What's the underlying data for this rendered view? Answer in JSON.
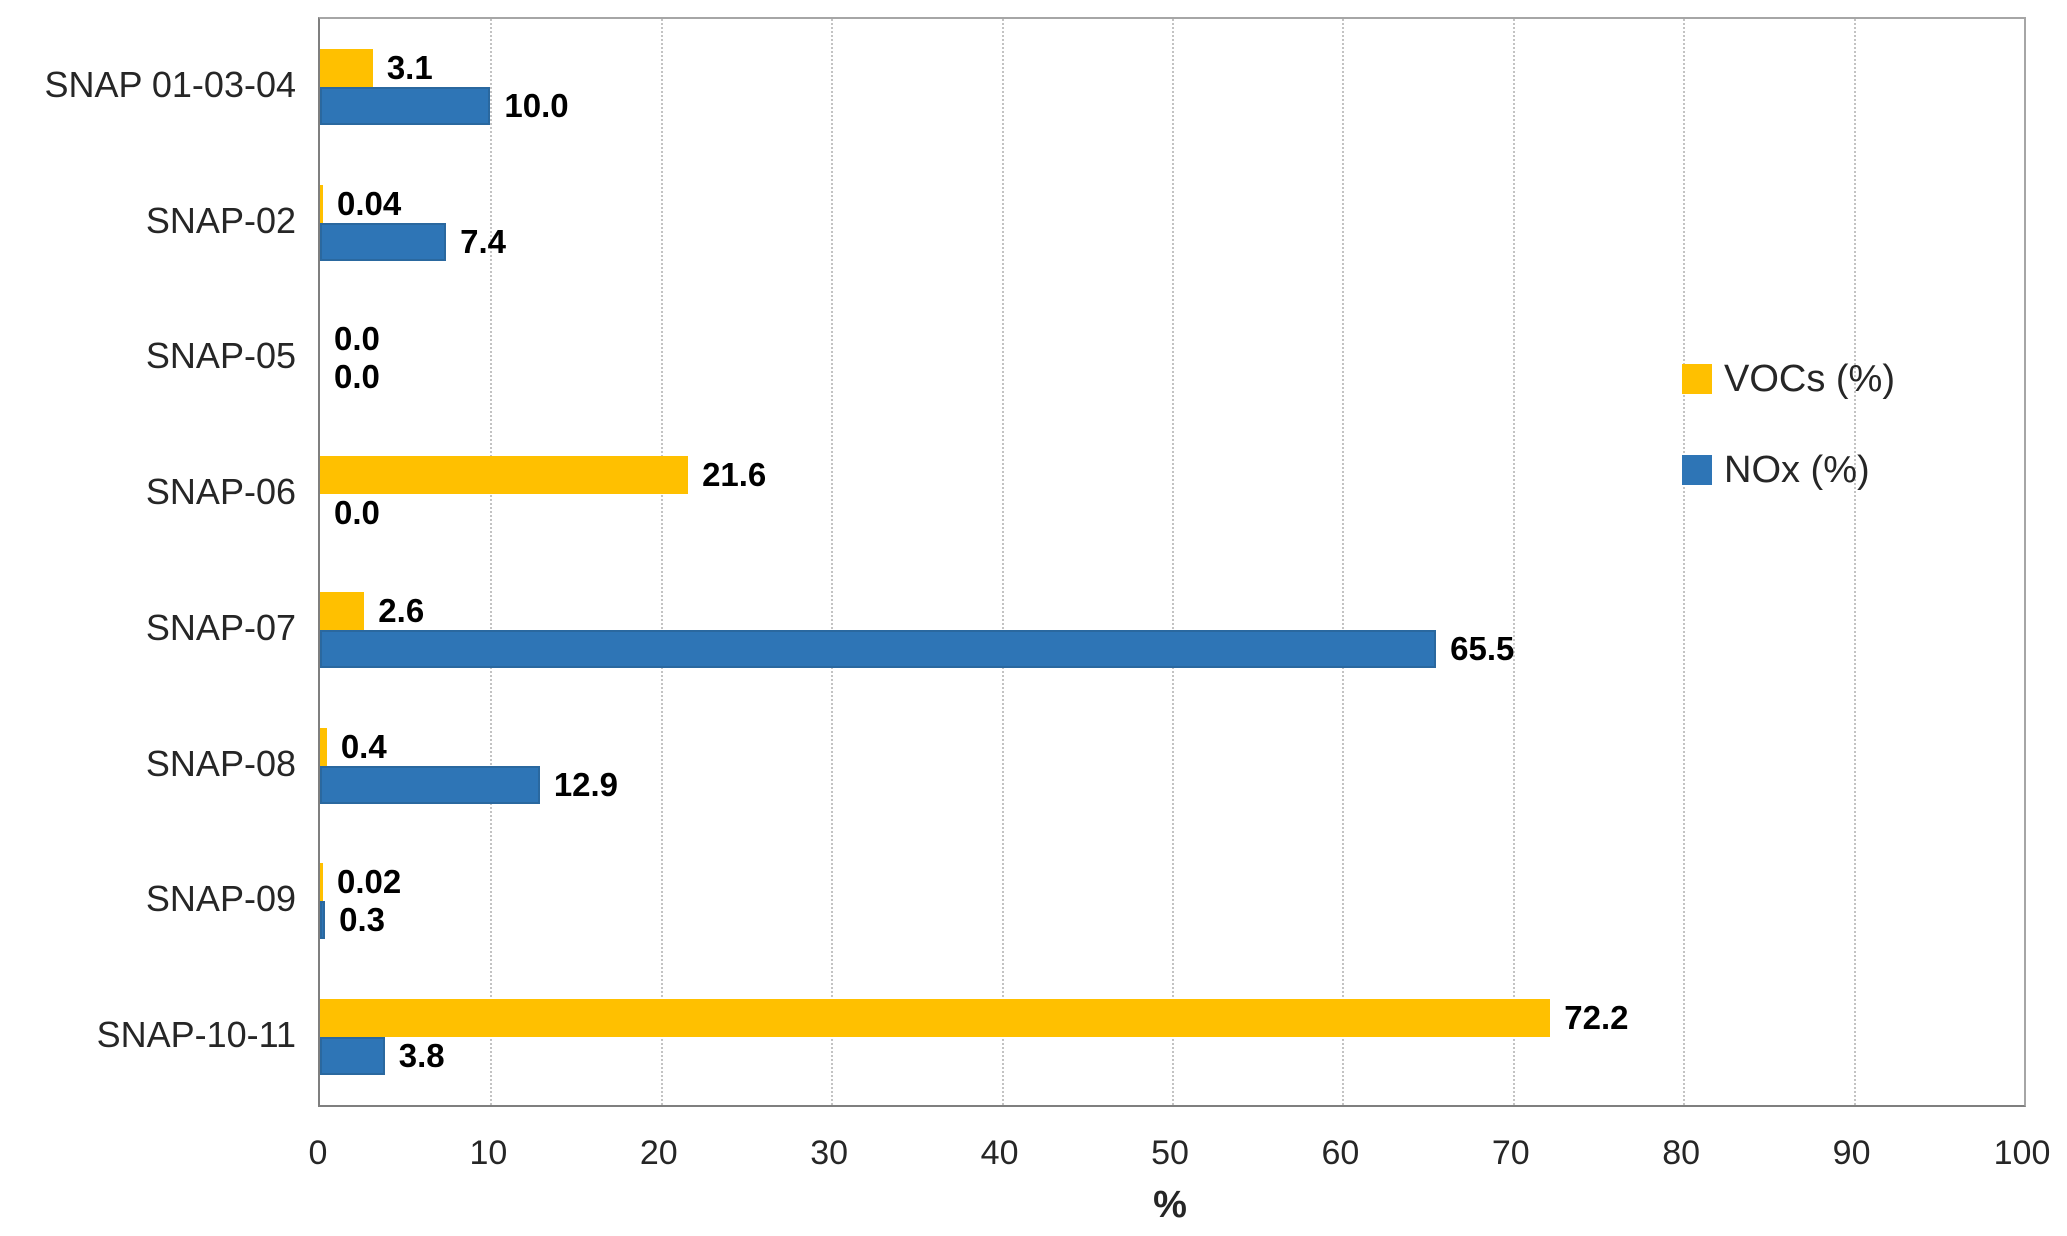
{
  "chart_data": {
    "type": "bar",
    "orientation": "horizontal",
    "title": "",
    "xlabel": "%",
    "xlim": [
      0,
      100
    ],
    "xticks": [
      0,
      10,
      20,
      30,
      40,
      50,
      60,
      70,
      80,
      90,
      100
    ],
    "grid": "vertical-dotted",
    "legend_position": "right-inside",
    "categories": [
      "SNAP 01-03-04",
      "SNAP-02",
      "SNAP-05",
      "SNAP-06",
      "SNAP-07",
      "SNAP-08",
      "SNAP-09",
      "SNAP-10-11"
    ],
    "series": [
      {
        "name": "VOCs (%)",
        "color": "#FFC000",
        "values": [
          3.1,
          0.04,
          0.0,
          21.6,
          2.6,
          0.4,
          0.02,
          72.2
        ],
        "labels": [
          "3.1",
          "0.04",
          "0.0",
          "21.6",
          "2.6",
          "0.4",
          "0.02",
          "72.2"
        ]
      },
      {
        "name": "NOx (%)",
        "color": "#2E75B6",
        "values": [
          10.0,
          7.4,
          0.0,
          0.0,
          65.5,
          12.9,
          0.3,
          3.8
        ],
        "labels": [
          "10.0",
          "7.4",
          "0.0",
          "0.0",
          "65.5",
          "12.9",
          "0.3",
          "3.8"
        ]
      }
    ]
  },
  "colors": {
    "voc": "#FFC000",
    "nox": "#2E75B6",
    "gridline": "#C3C3C3",
    "frame": "#A6A6A6",
    "tick_text": "#262626",
    "data_label_text": "#000000"
  }
}
